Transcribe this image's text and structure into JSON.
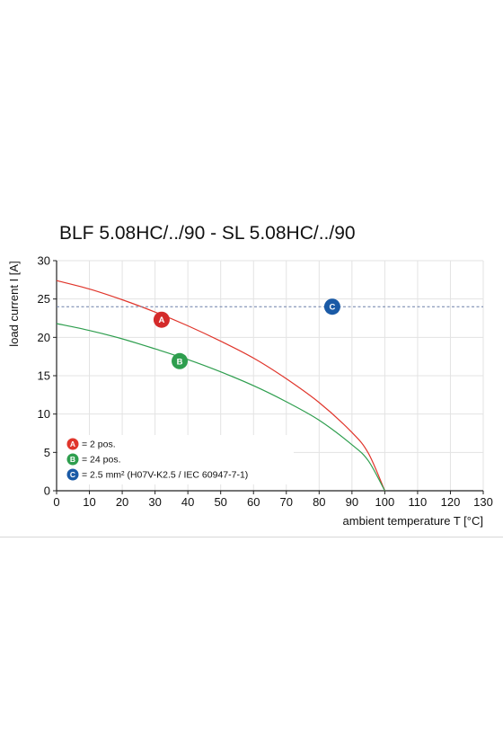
{
  "chart_data": {
    "type": "line",
    "title": "BLF 5.08HC/../90 - SL 5.08HC/../90",
    "xlabel": "ambient temperature T [°C]",
    "ylabel": "load current I [A]",
    "xlim": [
      0,
      130
    ],
    "ylim": [
      0,
      30
    ],
    "x_ticks": [
      0,
      10,
      20,
      30,
      40,
      50,
      60,
      70,
      80,
      90,
      100,
      110,
      120,
      130
    ],
    "y_ticks": [
      0,
      5,
      10,
      15,
      20,
      25,
      30
    ],
    "grid": true,
    "legend_position": "bottom-left",
    "series": [
      {
        "marker": "A",
        "legend": "= 2 pos.",
        "color": "#e0352b",
        "style": "solid",
        "x": [
          0,
          10,
          20,
          30,
          40,
          50,
          60,
          70,
          80,
          90,
          95,
          100
        ],
        "y": [
          27.4,
          26.3,
          24.9,
          23.3,
          21.5,
          19.5,
          17.3,
          14.6,
          11.5,
          7.6,
          4.9,
          0
        ]
      },
      {
        "marker": "B",
        "legend": "= 24 pos.",
        "color": "#2e9e4e",
        "style": "solid",
        "x": [
          0,
          10,
          20,
          30,
          40,
          50,
          60,
          70,
          80,
          90,
          95,
          100
        ],
        "y": [
          21.8,
          20.9,
          19.8,
          18.5,
          17.1,
          15.5,
          13.7,
          11.6,
          9.2,
          6.0,
          3.9,
          0
        ]
      },
      {
        "marker": "C",
        "legend": "= 2.5 mm² (H07V-K2.5 / IEC 60947-7-1)",
        "color": "#1a5aa6",
        "style": "dashed",
        "line_color": "#6a7fa8",
        "x": [
          0,
          130
        ],
        "y": [
          24,
          24
        ]
      }
    ],
    "annotations": [
      {
        "label": "A",
        "x": 32,
        "y": 22.3,
        "color": "#d42a2a"
      },
      {
        "label": "B",
        "x": 37.5,
        "y": 16.9,
        "color": "#2e9e4e"
      },
      {
        "label": "C",
        "x": 84,
        "y": 24,
        "color": "#1a5aa6"
      }
    ]
  }
}
